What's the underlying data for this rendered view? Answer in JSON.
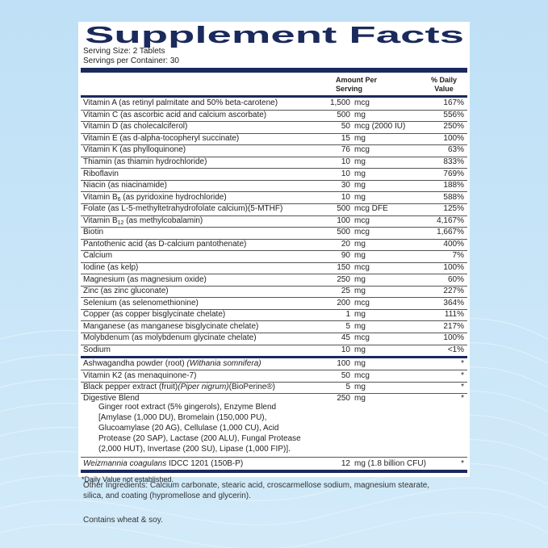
{
  "header": {
    "title": "Supplement Facts",
    "serving_size": "Serving Size: 2 Tablets",
    "servings_per_container": "Servings per Container: 30"
  },
  "columns": {
    "amount": "Amount Per Serving",
    "daily_value": "% Daily Value"
  },
  "sections": [
    {
      "rows": [
        {
          "name": [
            {
              "text": "Vitamin A (as retinyl palmitate and 50% beta-carotene)"
            }
          ],
          "amount": "1,500",
          "unit": "mcg",
          "dv": "167%"
        },
        {
          "name": [
            {
              "text": "Vitamin C (as ascorbic acid and calcium ascorbate)"
            }
          ],
          "amount": "500",
          "unit": "mg",
          "dv": "556%"
        },
        {
          "name": [
            {
              "text": "Vitamin D (as cholecalciferol)"
            }
          ],
          "amount": "50",
          "unit": "mcg (2000 IU)",
          "dv": "250%"
        },
        {
          "name": [
            {
              "text": "Vitamin E (as d-alpha-tocopheryl succinate)"
            }
          ],
          "amount": "15",
          "unit": "mg",
          "dv": "100%"
        },
        {
          "name": [
            {
              "text": "Vitamin K (as phylloquinone)"
            }
          ],
          "amount": "76",
          "unit": "mcg",
          "dv": "63%"
        },
        {
          "name": [
            {
              "text": "Thiamin (as thiamin hydrochloride)"
            }
          ],
          "amount": "10",
          "unit": "mg",
          "dv": "833%"
        },
        {
          "name": [
            {
              "text": "Riboflavin"
            }
          ],
          "amount": "10",
          "unit": "mg",
          "dv": "769%"
        },
        {
          "name": [
            {
              "text": "Niacin (as niacinamide)"
            }
          ],
          "amount": "30",
          "unit": "mg",
          "dv": "188%"
        },
        {
          "name": [
            {
              "text": "Vitamin B"
            },
            {
              "text": "6",
              "sub": true
            },
            {
              "text": " (as pyridoxine hydrochloride)"
            }
          ],
          "amount": "10",
          "unit": "mg",
          "dv": "588%"
        },
        {
          "name": [
            {
              "text": "Folate (as L-5-methyltetrahydrofolate calcium)(5-MTHF)"
            }
          ],
          "amount": "500",
          "unit": "mcg DFE",
          "dv": "125%"
        },
        {
          "name": [
            {
              "text": "Vitamin B"
            },
            {
              "text": "12",
              "sub": true
            },
            {
              "text": " (as methylcobalamin)"
            }
          ],
          "amount": "100",
          "unit": "mcg",
          "dv": "4,167%"
        },
        {
          "name": [
            {
              "text": "Biotin"
            }
          ],
          "amount": "500",
          "unit": "mcg",
          "dv": "1,667%"
        },
        {
          "name": [
            {
              "text": "Pantothenic acid (as D-calcium pantothenate)"
            }
          ],
          "amount": "20",
          "unit": "mg",
          "dv": "400%"
        },
        {
          "name": [
            {
              "text": "Calcium"
            }
          ],
          "amount": "90",
          "unit": "mg",
          "dv": "7%"
        },
        {
          "name": [
            {
              "text": "Iodine (as kelp)"
            }
          ],
          "amount": "150",
          "unit": "mcg",
          "dv": "100%"
        },
        {
          "name": [
            {
              "text": "Magnesium (as magnesium oxide)"
            }
          ],
          "amount": "250",
          "unit": "mg",
          "dv": "60%"
        },
        {
          "name": [
            {
              "text": "Zinc (as zinc gluconate)"
            }
          ],
          "amount": "25",
          "unit": "mg",
          "dv": "227%"
        },
        {
          "name": [
            {
              "text": "Selenium (as selenomethionine)"
            }
          ],
          "amount": "200",
          "unit": "mcg",
          "dv": "364%"
        },
        {
          "name": [
            {
              "text": "Copper (as copper bisglycinate chelate)"
            }
          ],
          "amount": "1",
          "unit": "mg",
          "dv": "111%"
        },
        {
          "name": [
            {
              "text": "Manganese (as manganese bisglycinate chelate)"
            }
          ],
          "amount": "5",
          "unit": "mg",
          "dv": "217%"
        },
        {
          "name": [
            {
              "text": "Molybdenum (as molybdenum glycinate chelate)"
            }
          ],
          "amount": "45",
          "unit": "mcg",
          "dv": "100%"
        },
        {
          "name": [
            {
              "text": "Sodium"
            }
          ],
          "amount": "10",
          "unit": "mg",
          "dv": "<1%"
        }
      ]
    },
    {
      "rows": [
        {
          "name": [
            {
              "text": "Ashwagandha powder (root) "
            },
            {
              "text": "(Withania somnifera)",
              "italic": true
            }
          ],
          "amount": "100",
          "unit": "mg",
          "dv": "*"
        },
        {
          "name": [
            {
              "text": "Vitamin K2 (as menaquinone-7)"
            }
          ],
          "amount": "50",
          "unit": "mcg",
          "dv": "*"
        },
        {
          "name": [
            {
              "text": "Black pepper extract (fruit)"
            },
            {
              "text": "(Piper nigrum)",
              "italic": true
            },
            {
              "text": "(BioPerine®)"
            }
          ],
          "amount": "5",
          "unit": "mg",
          "dv": "*"
        },
        {
          "name": [
            {
              "text": "Digestive Blend"
            }
          ],
          "amount": "250",
          "unit": "mg",
          "dv": "*",
          "description": [
            "Ginger root extract (5% gingerols), Enzyme Blend",
            "[Amylase (1,000 DU), Bromelain (150,000 PU),",
            "Glucoamylase (20 AG), Cellulase (1,000 CU), Acid",
            "Protease (20 SAP), Lactase (200 ALU), Fungal Protease",
            "(2,000 HUT), Invertase (200 SU), Lipase (1,000 FIP)]."
          ]
        }
      ]
    },
    {
      "rows": [
        {
          "name": [
            {
              "text": "Weizmannia coagulans",
              "italic": true
            },
            {
              "text": " IDCC 1201 (150B-P)"
            }
          ],
          "amount": "12",
          "unit": "mg (1.8 billion CFU)",
          "dv": "*"
        }
      ]
    }
  ],
  "footnote": "*Daily Value not established.",
  "other_ingredients": [
    "Other Ingredients: Calcium carbonate, stearic acid, croscarmellose sodium, magnesium stearate,",
    "silica, and coating  (hypromellose and glycerin)."
  ],
  "allergens": "Contains wheat & soy."
}
